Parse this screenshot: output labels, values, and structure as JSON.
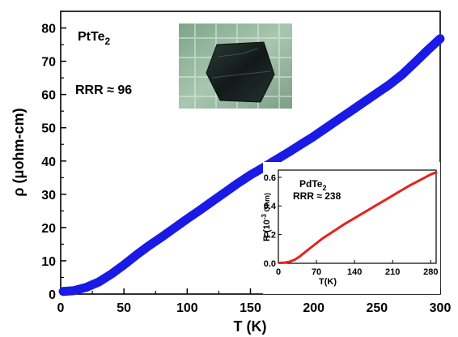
{
  "chart_data": [
    {
      "type": "line",
      "xlabel": "T (K)",
      "ylabel": "ρ (μohm-cm)",
      "xlim": [
        0,
        300
      ],
      "ylim": [
        0,
        85
      ],
      "xticks": [
        0,
        50,
        100,
        150,
        200,
        250,
        300
      ],
      "yticks": [
        0,
        10,
        20,
        30,
        40,
        50,
        60,
        70,
        80
      ],
      "grid": false,
      "annotations": {
        "material_base": "PtTe",
        "material_sub": "2",
        "rrr": "RRR ≈ 96"
      },
      "series": [
        {
          "color": "#1a1ae6",
          "x": [
            2,
            10,
            20,
            30,
            40,
            50,
            60,
            70,
            80,
            90,
            100,
            110,
            120,
            130,
            140,
            150,
            160,
            170,
            180,
            190,
            200,
            210,
            220,
            230,
            240,
            250,
            260,
            270,
            280,
            290,
            300
          ],
          "y": [
            0.8,
            1.0,
            2.0,
            3.6,
            6.0,
            8.8,
            11.8,
            14.6,
            17.2,
            19.9,
            22.6,
            25.2,
            27.9,
            30.6,
            33.3,
            35.8,
            38.0,
            40.3,
            42.6,
            45.0,
            47.4,
            50.0,
            52.6,
            55.2,
            57.8,
            60.4,
            63.0,
            66.0,
            69.6,
            73.3,
            76.8
          ]
        }
      ]
    },
    {
      "type": "line",
      "xlabel": "T(K)",
      "ylabel_main": "R (10",
      "ylabel_sup": "-3",
      "ylabel_end": " Ohm)",
      "xlim": [
        0,
        290
      ],
      "ylim": [
        0,
        0.65
      ],
      "xticks": [
        0,
        70,
        140,
        210,
        280
      ],
      "yticks": [
        "0.0",
        "0.2",
        "0.4",
        "0.6"
      ],
      "annotations": {
        "material_base": "PdTe",
        "material_sub": "2",
        "rrr": "RRR ≈ 238"
      },
      "series": [
        {
          "color": "#e6231c",
          "x": [
            2,
            10,
            20,
            30,
            40,
            50,
            60,
            70,
            80,
            100,
            120,
            140,
            160,
            180,
            200,
            220,
            240,
            260,
            280,
            290
          ],
          "y": [
            0.003,
            0.004,
            0.01,
            0.025,
            0.05,
            0.08,
            0.11,
            0.14,
            0.17,
            0.22,
            0.27,
            0.315,
            0.36,
            0.405,
            0.45,
            0.495,
            0.54,
            0.58,
            0.62,
            0.635
          ]
        }
      ]
    }
  ]
}
